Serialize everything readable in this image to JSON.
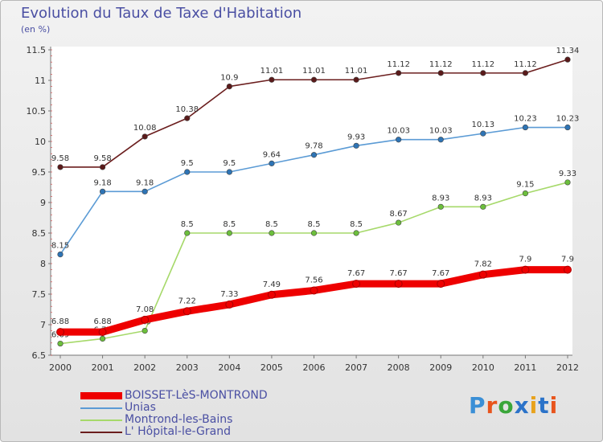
{
  "header": {
    "title": "Evolution du Taux de Taxe d'Habitation",
    "subtitle": "(en %)"
  },
  "logo": {
    "text": "Proxiti",
    "letter_colors": [
      "#3a8fd6",
      "#e8541c",
      "#3aa63a",
      "#2b73c9",
      "#e8a21c",
      "#2b73c9",
      "#e8541c"
    ]
  },
  "chart_data": {
    "type": "line",
    "title": "Evolution du Taux de Taxe d'Habitation",
    "ylabel": "(en %)",
    "xlabel": "",
    "x": [
      "2000",
      "2001",
      "2002",
      "2003",
      "2004",
      "2005",
      "2006",
      "2007",
      "2008",
      "2009",
      "2010",
      "2011",
      "2012"
    ],
    "ylim": [
      6.5,
      11.5
    ],
    "yticks": [
      "6.5",
      "7",
      "7.5",
      "8",
      "8.5",
      "9",
      "9.5",
      "10",
      "10.5",
      "11",
      "11.5"
    ],
    "grid": false,
    "legend_placement": "bottom",
    "series": [
      {
        "name": "L' Hôpital-le-Grand",
        "color": "#6b1e1e",
        "point_color": "#5a1a1a",
        "values": [
          9.58,
          9.58,
          10.08,
          10.38,
          10.9,
          11.01,
          11.01,
          11.01,
          11.12,
          11.12,
          11.12,
          11.12,
          11.34
        ],
        "labels": [
          "9.58",
          "9.58",
          "10.08",
          "10.38",
          "10.9",
          "11.01",
          "11.01",
          "11.01",
          "11.12",
          "11.12",
          "11.12",
          "11.12",
          "11.34"
        ]
      },
      {
        "name": "Unias",
        "color": "#5b9bd5",
        "point_color": "#2e74b5",
        "values": [
          8.15,
          9.18,
          9.18,
          9.5,
          9.5,
          9.64,
          9.78,
          9.93,
          10.03,
          10.03,
          10.13,
          10.23,
          10.23
        ],
        "labels": [
          "8.15",
          "9.18",
          "9.18",
          "9.5",
          "9.5",
          "9.64",
          "9.78",
          "9.93",
          "10.03",
          "10.03",
          "10.13",
          "10.23",
          "10.23"
        ]
      },
      {
        "name": "Montrond-les-Bains",
        "color": "#a6d96a",
        "point_color": "#6cbf3c",
        "values": [
          6.69,
          6.77,
          6.9,
          8.5,
          8.5,
          8.5,
          8.5,
          8.5,
          8.67,
          8.93,
          8.93,
          9.15,
          9.33
        ],
        "labels": [
          "6.69",
          "6.77",
          "6.9",
          "8.5",
          "8.5",
          "8.5",
          "8.5",
          "8.5",
          "8.67",
          "8.93",
          "8.93",
          "9.15",
          "9.33"
        ]
      },
      {
        "name": "BOISSET-LèS-MONTROND",
        "color": "#ee0000",
        "point_color": "#ee0000",
        "values": [
          6.88,
          6.88,
          7.08,
          7.22,
          7.33,
          7.49,
          7.56,
          7.67,
          7.67,
          7.67,
          7.82,
          7.9,
          7.9
        ],
        "labels": [
          "6.88",
          "6.88",
          "7.08",
          "7.22",
          "7.33",
          "7.49",
          "7.56",
          "7.67",
          "7.67",
          "7.67",
          "7.82",
          "7.9",
          "7.9"
        ]
      }
    ],
    "legend": [
      {
        "name": "BOISSET-LèS-MONTROND",
        "color": "#ee0000",
        "thick": true
      },
      {
        "name": "Unias",
        "color": "#5b9bd5",
        "thick": false
      },
      {
        "name": "Montrond-les-Bains",
        "color": "#a6d96a",
        "thick": false
      },
      {
        "name": "L' Hôpital-le-Grand",
        "color": "#6b1e1e",
        "thick": false
      }
    ]
  }
}
